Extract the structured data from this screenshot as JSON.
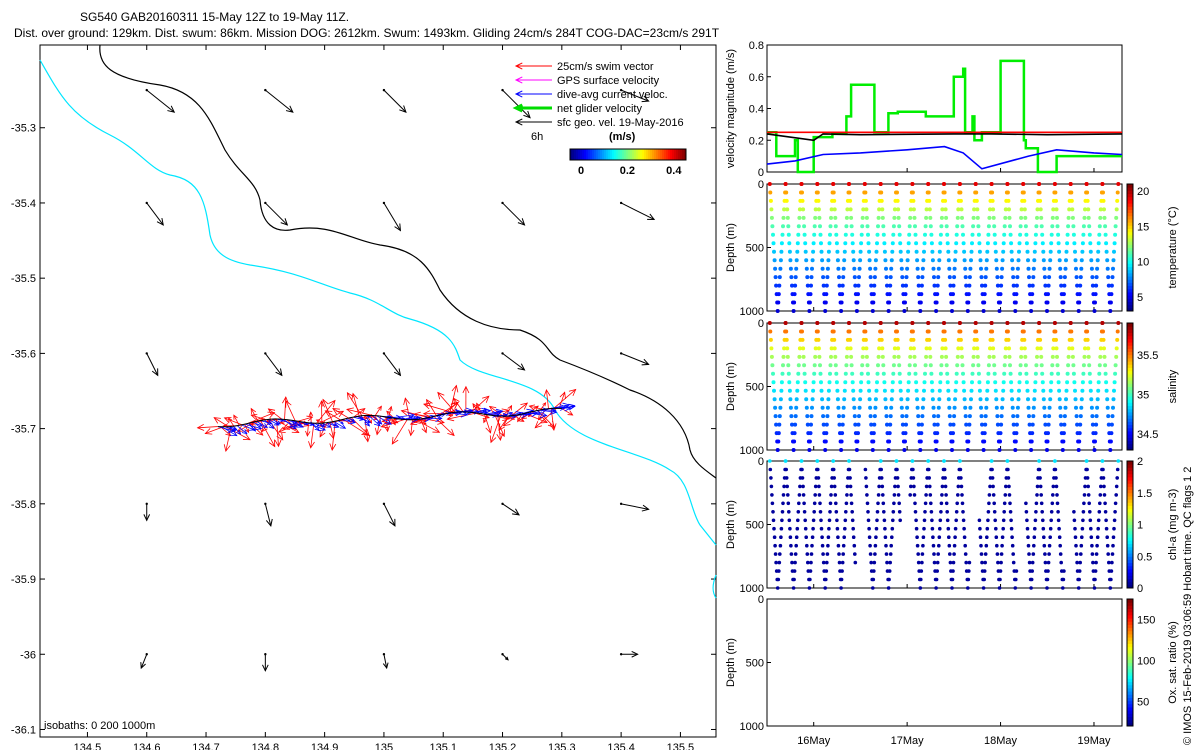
{
  "header": {
    "title_line1": "SG540 GAB20160311 15-May 12Z to 19-May 11Z.",
    "title_line2": "Dist. over ground: 129km. Dist. swum: 86km. Mission DOG: 2612km. Swum: 1493km. Gliding 24cm/s 284T COG-DAC=23cm/s 291T"
  },
  "credit": "© IMOS 15-Feb-2019 03:06:59 Hobart time. QC flags 1  2",
  "chart_data": [
    {
      "id": "map",
      "type": "scatter",
      "xlim": [
        134.42,
        135.56
      ],
      "ylim": [
        -36.11,
        -35.19
      ],
      "xticks": [
        "134.5",
        "134.6",
        "134.7",
        "134.8",
        "134.9",
        "135",
        "135.1",
        "135.2",
        "135.3",
        "135.4",
        "135.5"
      ],
      "yticks": [
        "-35.3",
        "-35.4",
        "-35.5",
        "-35.6",
        "-35.7",
        "-35.8",
        "-35.9",
        "-36",
        "-36.1"
      ],
      "legend": {
        "placement": "top-right",
        "items": [
          {
            "label": "25cm/s swim vector",
            "color": "#ff0000"
          },
          {
            "label": "GPS surface velocity",
            "color": "#ff00ff"
          },
          {
            "label": "dive-avg current veloc.",
            "color": "#0000ff"
          },
          {
            "label": "net glider velocity",
            "color": "#00dd00"
          },
          {
            "label": "sfc geo. vel. 19-May-2016",
            "color": "#000000"
          }
        ]
      },
      "vector_scale_label": "6h",
      "colorbar": {
        "unit": "(m/s)",
        "ticks": [
          "0",
          "0.2",
          "0.4"
        ],
        "range": [
          0,
          0.5
        ]
      },
      "isobath_label": "isobaths: 0   200  1000m",
      "geo_vectors": [
        {
          "lon": 134.6,
          "lat": -35.25,
          "u": 0.05,
          "v": -0.04
        },
        {
          "lon": 134.8,
          "lat": -35.25,
          "u": 0.05,
          "v": -0.04
        },
        {
          "lon": 135.0,
          "lat": -35.25,
          "u": 0.04,
          "v": -0.04
        },
        {
          "lon": 135.2,
          "lat": -35.25,
          "u": 0.05,
          "v": -0.05
        },
        {
          "lon": 135.4,
          "lat": -35.25,
          "u": 0.05,
          "v": -0.02
        },
        {
          "lon": 134.6,
          "lat": -35.4,
          "u": 0.03,
          "v": -0.04
        },
        {
          "lon": 134.8,
          "lat": -35.4,
          "u": 0.04,
          "v": -0.04
        },
        {
          "lon": 135.0,
          "lat": -35.4,
          "u": 0.03,
          "v": -0.05
        },
        {
          "lon": 135.2,
          "lat": -35.4,
          "u": 0.04,
          "v": -0.04
        },
        {
          "lon": 135.4,
          "lat": -35.4,
          "u": 0.06,
          "v": -0.03
        },
        {
          "lon": 134.6,
          "lat": -35.6,
          "u": 0.02,
          "v": -0.04
        },
        {
          "lon": 134.8,
          "lat": -35.6,
          "u": 0.03,
          "v": -0.04
        },
        {
          "lon": 135.0,
          "lat": -35.6,
          "u": 0.03,
          "v": -0.04
        },
        {
          "lon": 135.2,
          "lat": -35.6,
          "u": 0.04,
          "v": -0.03
        },
        {
          "lon": 135.4,
          "lat": -35.6,
          "u": 0.05,
          "v": -0.02
        },
        {
          "lon": 134.6,
          "lat": -35.8,
          "u": 0.0,
          "v": -0.03
        },
        {
          "lon": 134.8,
          "lat": -35.8,
          "u": 0.01,
          "v": -0.04
        },
        {
          "lon": 135.0,
          "lat": -35.8,
          "u": 0.02,
          "v": -0.04
        },
        {
          "lon": 135.2,
          "lat": -35.8,
          "u": 0.03,
          "v": -0.02
        },
        {
          "lon": 135.4,
          "lat": -35.8,
          "u": 0.05,
          "v": -0.01
        },
        {
          "lon": 134.6,
          "lat": -36.0,
          "u": -0.01,
          "v": -0.025
        },
        {
          "lon": 134.8,
          "lat": -36.0,
          "u": 0.0,
          "v": -0.03
        },
        {
          "lon": 135.0,
          "lat": -36.0,
          "u": 0.005,
          "v": -0.025
        },
        {
          "lon": 135.2,
          "lat": -36.0,
          "u": 0.01,
          "v": -0.01
        },
        {
          "lon": 135.4,
          "lat": -36.0,
          "u": 0.03,
          "v": 0.0
        }
      ]
    },
    {
      "id": "velocity",
      "type": "line",
      "ylabel": "velocity magnitude (m/s)",
      "ylim": [
        0,
        0.8
      ],
      "yticks": [
        "0",
        "0.2",
        "0.4",
        "0.6",
        "0.8"
      ],
      "series": [
        {
          "color": "#00ee00",
          "x": [
            0,
            0.1,
            0.1,
            0.3,
            0.3,
            0.33,
            0.33,
            0.5,
            0.5,
            0.7,
            0.7,
            0.85,
            0.85,
            0.9,
            0.9,
            1.15,
            1.15,
            1.3,
            1.3,
            1.4,
            1.4,
            1.7,
            1.7,
            2.0,
            2.0,
            2.1,
            2.1,
            2.12,
            2.12,
            2.2,
            2.2,
            2.22,
            2.22,
            2.3,
            2.3,
            2.5,
            2.5,
            2.75,
            2.75,
            2.77,
            2.77,
            2.9,
            2.9,
            3.1,
            3.1,
            3.8,
            3.8
          ],
          "y": [
            0.25,
            0.25,
            0.1,
            0.1,
            0.2,
            0.2,
            0,
            0,
            0.22,
            0.22,
            0.24,
            0.24,
            0.35,
            0.35,
            0.55,
            0.55,
            0.25,
            0.25,
            0.37,
            0.37,
            0.38,
            0.38,
            0.35,
            0.35,
            0.6,
            0.6,
            0.65,
            0.65,
            0.25,
            0.25,
            0.35,
            0.35,
            0.2,
            0.2,
            0.25,
            0.25,
            0.7,
            0.7,
            0.2,
            0.2,
            0.15,
            0.15,
            0,
            0,
            0.1,
            0.1,
            0.1
          ]
        },
        {
          "color": "#ff0000",
          "x": [
            0,
            3.8
          ],
          "y": [
            0.25,
            0.25
          ]
        },
        {
          "color": "#000000",
          "x": [
            0,
            0.5,
            0.6,
            1.0,
            2.0,
            2.4,
            3.0,
            3.8
          ],
          "y": [
            0.24,
            0.2,
            0.24,
            0.235,
            0.24,
            0.24,
            0.235,
            0.24
          ]
        },
        {
          "color": "#0000ff",
          "x": [
            0,
            0.3,
            0.6,
            1.0,
            1.5,
            1.9,
            2.1,
            2.3,
            2.8,
            3.1,
            3.5,
            3.8
          ],
          "y": [
            0.05,
            0.07,
            0.11,
            0.12,
            0.14,
            0.16,
            0.12,
            0.02,
            0.1,
            0.14,
            0.12,
            0.11
          ]
        }
      ]
    },
    {
      "id": "temperature",
      "type": "scatter",
      "ylabel": "Depth (m)",
      "cblabel": "temperature (°C)",
      "ylim": [
        0,
        1000
      ],
      "yticks": [
        "0",
        "500",
        "1000"
      ],
      "cbticks": [
        "5",
        "10",
        "15",
        "20"
      ],
      "cbrange": [
        3,
        21
      ],
      "n_dives": 22,
      "surface_value": 20,
      "bottom_value": 4
    },
    {
      "id": "salinity",
      "type": "scatter",
      "ylabel": "Depth (m)",
      "cblabel": "salinity",
      "ylim": [
        0,
        1000
      ],
      "yticks": [
        "0",
        "500",
        "1000"
      ],
      "cbticks": [
        "34.5",
        "35",
        "35.5"
      ],
      "cbrange": [
        34.3,
        35.9
      ],
      "n_dives": 22,
      "surface_value": 35.8,
      "bottom_value": 34.4
    },
    {
      "id": "chla",
      "type": "scatter",
      "ylabel": "Depth (m)",
      "cblabel": "chl-a (mg m-3)",
      "ylim": [
        0,
        1000
      ],
      "yticks": [
        "0",
        "500",
        "1000"
      ],
      "cbticks": [
        "0",
        "0.5",
        "1",
        "1.5",
        "2"
      ],
      "cbrange": [
        0,
        2
      ],
      "gaps": [
        [
          0.95,
          1.05
        ],
        [
          1.43,
          1.53
        ],
        [
          2.17,
          2.27
        ],
        [
          2.67,
          2.77
        ],
        [
          3.18,
          3.28
        ]
      ]
    },
    {
      "id": "oxygen",
      "type": "scatter",
      "ylabel": "Depth (m)",
      "cblabel": "Ox. sat. ratio (%)",
      "ylim": [
        0,
        1000
      ],
      "yticks": [
        "0",
        "500",
        "1000"
      ],
      "cbticks": [
        "50",
        "100",
        "150"
      ],
      "cbrange": [
        20,
        175
      ]
    }
  ],
  "time_axis": {
    "xlim": [
      0,
      3.8
    ],
    "ticks": [
      {
        "label": "16May",
        "x": 0.5
      },
      {
        "label": "17May",
        "x": 1.5
      },
      {
        "label": "18May",
        "x": 2.5
      },
      {
        "label": "19May",
        "x": 3.5
      }
    ]
  }
}
